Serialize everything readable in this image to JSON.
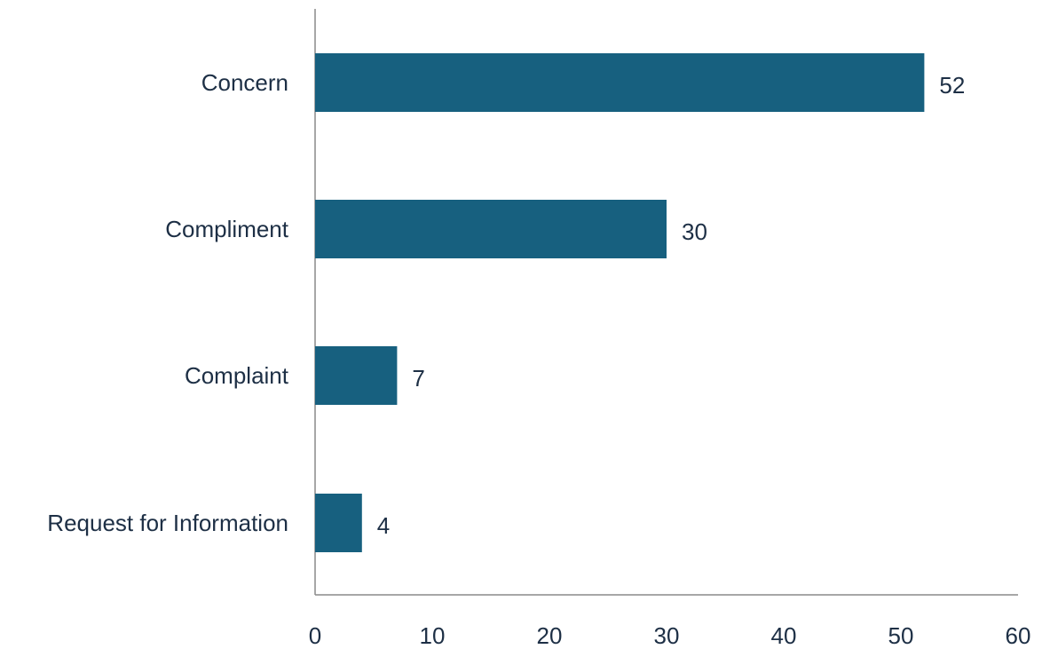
{
  "chart_data": {
    "type": "bar",
    "orientation": "horizontal",
    "title": "",
    "xlabel": "",
    "ylabel": "",
    "categories": [
      "Concern",
      "Compliment",
      "Complaint",
      "Request for Information"
    ],
    "series": [
      {
        "values": [
          52,
          30,
          7,
          4
        ]
      }
    ],
    "xlim": [
      0,
      60
    ],
    "xticks": [
      "0",
      "10",
      "20",
      "30",
      "40",
      "50",
      "60"
    ],
    "data_labels": [
      "52",
      "30",
      "7",
      "4"
    ],
    "grid": false,
    "legend": "none",
    "colors": {
      "bar": "#17607f",
      "text": "#1d2f45",
      "axis": "#8a8a8a"
    }
  }
}
